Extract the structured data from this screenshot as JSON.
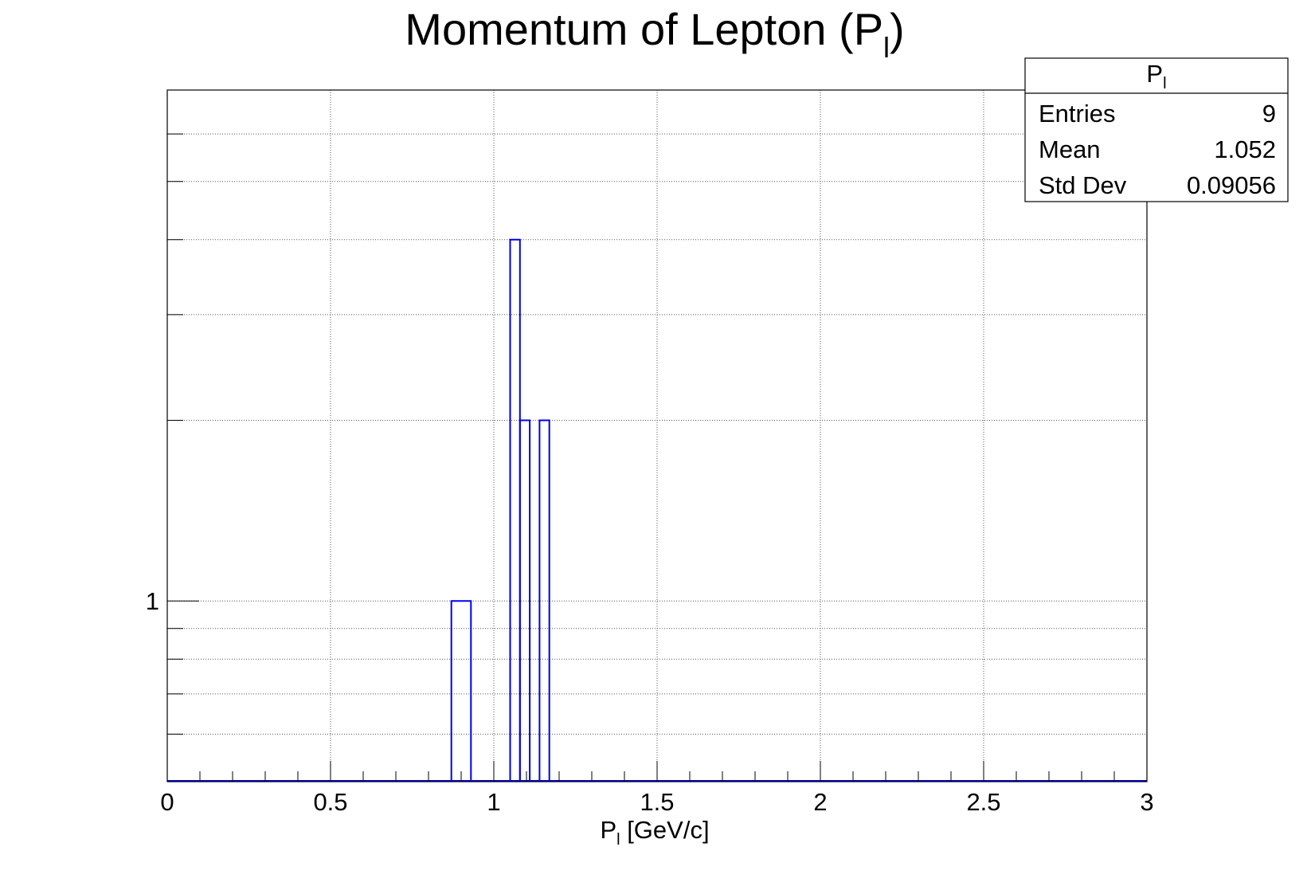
{
  "chart_data": {
    "type": "bar",
    "title_main": "Momentum of Lepton (P",
    "title_sub": "l",
    "title_close": ")",
    "xlabel_main": "P",
    "xlabel_sub": "l",
    "xlabel_rest": " [GeV/c]",
    "ylabel": "",
    "xlim": [
      0,
      3
    ],
    "y_scale": "log",
    "ylim": [
      0.5,
      7.1
    ],
    "x_ticks": [
      "0",
      "0.5",
      "1",
      "1.5",
      "2",
      "2.5",
      "3"
    ],
    "x_tick_values": [
      0,
      0.5,
      1,
      1.5,
      2,
      2.5,
      3
    ],
    "y_ticks": [
      "1"
    ],
    "y_tick_values": [
      1
    ],
    "y_minor_tick_values": [
      0.6,
      0.7,
      0.8,
      0.9,
      2,
      3,
      4,
      5,
      6
    ],
    "grid": true,
    "line_color": "#0000ee",
    "bins": [
      {
        "x_low": 0.87,
        "x_high": 0.93,
        "value": 1
      },
      {
        "x_low": 1.05,
        "x_high": 1.08,
        "value": 4
      },
      {
        "x_low": 1.08,
        "x_high": 1.11,
        "value": 2
      },
      {
        "x_low": 1.14,
        "x_high": 1.17,
        "value": 2
      }
    ],
    "stats": {
      "title_main": "P",
      "title_sub": "l",
      "rows": [
        {
          "label": "Entries",
          "value": "9"
        },
        {
          "label": "Mean",
          "value": "1.052"
        },
        {
          "label": "Std Dev",
          "value": "0.09056"
        }
      ]
    }
  }
}
